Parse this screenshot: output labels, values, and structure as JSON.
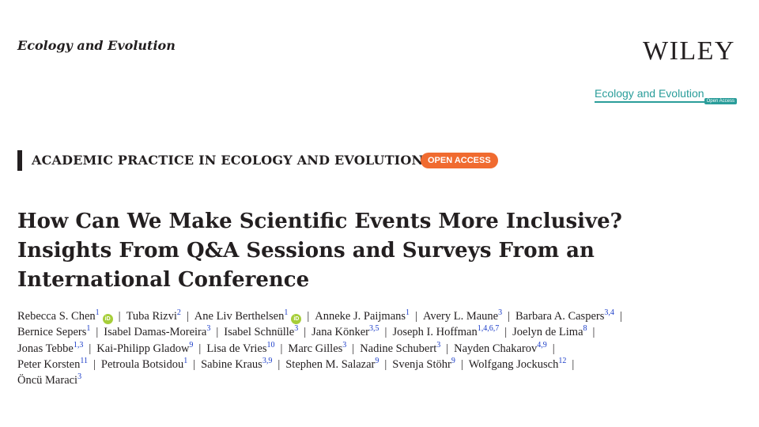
{
  "header": {
    "journal_name": "Ecology and Evolution",
    "publisher_logo": "WILEY",
    "journal_logo_text": "Ecology and Evolution",
    "journal_logo_badge": "Open Access"
  },
  "article": {
    "section": "ACADEMIC PRACTICE IN ECOLOGY AND EVOLUTION",
    "access_badge": "OPEN ACCESS",
    "title_lines": [
      "How Can We Make Scientific Events More Inclusive?",
      "Insights From Q&A Sessions and Surveys From an",
      "International Conference"
    ],
    "author_lines": [
      [
        {
          "name": "Rebecca S. Chen",
          "aff": "1",
          "orcid": true
        },
        {
          "name": "Tuba Rizvi",
          "aff": "2",
          "orcid": false
        },
        {
          "name": "Ane Liv Berthelsen",
          "aff": "1",
          "orcid": true
        },
        {
          "name": "Anneke J. Paijmans",
          "aff": "1",
          "orcid": false
        },
        {
          "name": "Avery L. Maune",
          "aff": "3",
          "orcid": false
        },
        {
          "name": "Barbara A. Caspers",
          "aff": "3,4",
          "orcid": false
        }
      ],
      [
        {
          "name": "Bernice Sepers",
          "aff": "1",
          "orcid": false
        },
        {
          "name": "Isabel Damas-Moreira",
          "aff": "3",
          "orcid": false
        },
        {
          "name": "Isabel Schnülle",
          "aff": "3",
          "orcid": false
        },
        {
          "name": "Jana Könker",
          "aff": "3,5",
          "orcid": false
        },
        {
          "name": "Joseph I. Hoffman",
          "aff": "1,4,6,7",
          "orcid": false
        },
        {
          "name": "Joelyn de Lima",
          "aff": "8",
          "orcid": false
        }
      ],
      [
        {
          "name": "Jonas Tebbe",
          "aff": "1,3",
          "orcid": false
        },
        {
          "name": "Kai-Philipp Gladow",
          "aff": "9",
          "orcid": false
        },
        {
          "name": "Lisa de Vries",
          "aff": "10",
          "orcid": false
        },
        {
          "name": "Marc Gilles",
          "aff": "3",
          "orcid": false
        },
        {
          "name": "Nadine Schubert",
          "aff": "3",
          "orcid": false
        },
        {
          "name": "Nayden Chakarov",
          "aff": "4,9",
          "orcid": false
        }
      ],
      [
        {
          "name": "Peter Korsten",
          "aff": "11",
          "orcid": false
        },
        {
          "name": "Petroula Botsidou",
          "aff": "1",
          "orcid": false
        },
        {
          "name": "Sabine Kraus",
          "aff": "3,9",
          "orcid": false
        },
        {
          "name": "Stephen M. Salazar",
          "aff": "9",
          "orcid": false
        },
        {
          "name": "Svenja Stöhr",
          "aff": "9",
          "orcid": false
        },
        {
          "name": "Wolfgang Jockusch",
          "aff": "12",
          "orcid": false
        }
      ],
      [
        {
          "name": "Öncü Maraci",
          "aff": "3",
          "orcid": false
        }
      ]
    ],
    "separator": "|",
    "orcid_icon_label": "iD"
  }
}
